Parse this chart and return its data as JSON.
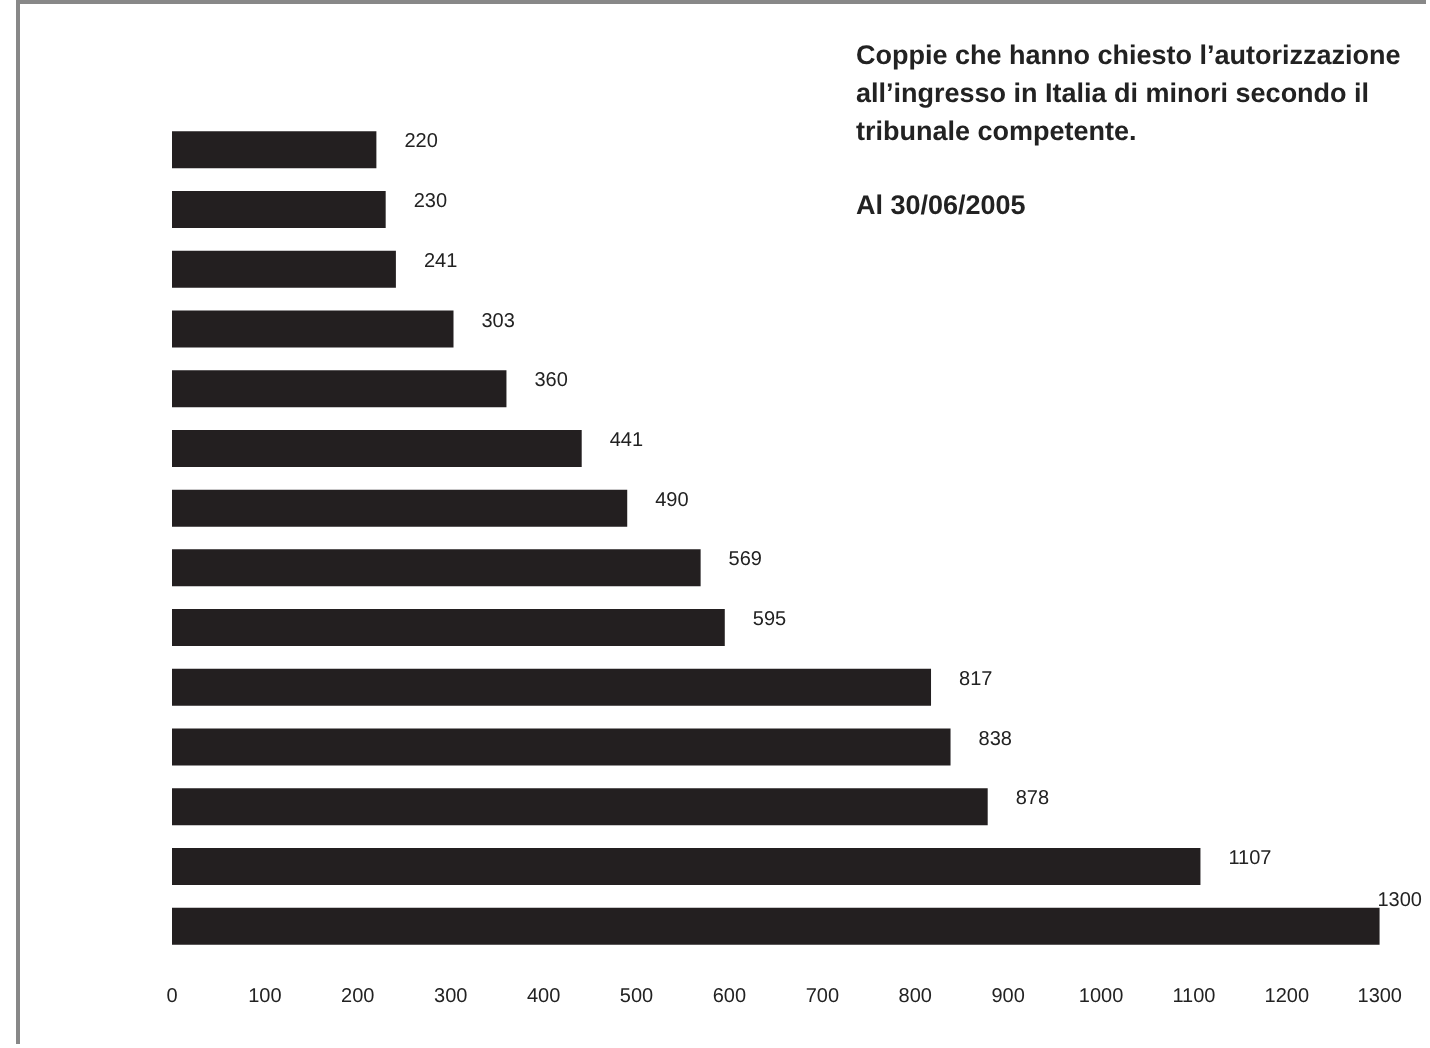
{
  "chart_data": {
    "type": "bar",
    "orientation": "horizontal",
    "title": "Coppie che hanno chiesto l’autorizzazione all’ingresso in Italia di minori secondo il tribunale competente.",
    "subtitle": "Al 30/06/2005",
    "categories": [
      null,
      null,
      null,
      null,
      null,
      null,
      null,
      null,
      null,
      null,
      null,
      null,
      null,
      null
    ],
    "values": [
      220,
      230,
      241,
      303,
      360,
      441,
      490,
      569,
      595,
      817,
      838,
      878,
      1107,
      1300
    ],
    "color": "#231f20",
    "xlim": [
      0,
      1300
    ],
    "xticks": [
      0,
      100,
      200,
      300,
      400,
      500,
      600,
      700,
      800,
      900,
      1000,
      1100,
      1200,
      1300
    ],
    "grid": false,
    "legend": false,
    "data_labels": true
  }
}
